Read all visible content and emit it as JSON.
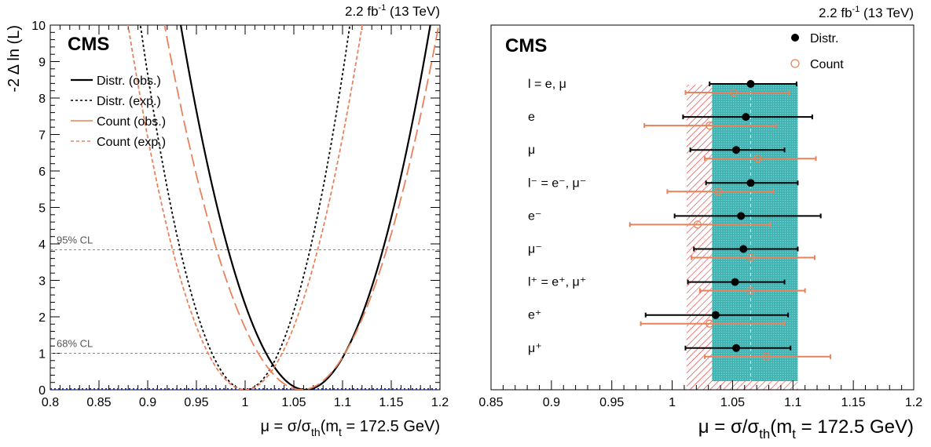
{
  "colors": {
    "obs": "#000000",
    "count": "#e8825a",
    "stat_band": "#41b3b3",
    "syst_band": "#e03030",
    "cl_line": "#888888"
  },
  "chart_data": [
    {
      "type": "line",
      "panel": "left",
      "lumi_label": "2.2 fb",
      "lumi_sup": "-1",
      "lumi_energy": " (13 TeV)",
      "cms_label": "CMS",
      "xlabel_parts": [
        "μ = σ/σ",
        "th",
        "(m",
        "t",
        " = 172.5 GeV)"
      ],
      "ylabel": "-2 Δ ln (L)",
      "xlim": [
        0.8,
        1.2
      ],
      "ylim": [
        0,
        10
      ],
      "xticks": [
        0.8,
        0.85,
        0.9,
        0.95,
        1.0,
        1.05,
        1.1,
        1.15,
        1.2
      ],
      "xtick_labels": [
        "0.8",
        "0.85",
        "0.9",
        "0.95",
        "1",
        "1.05",
        "1.1",
        "1.15",
        "1.2"
      ],
      "yticks": [
        0,
        1,
        2,
        3,
        4,
        5,
        6,
        7,
        8,
        9,
        10
      ],
      "ytick_labels": [
        "0",
        "1",
        "2",
        "3",
        "4",
        "5",
        "6",
        "7",
        "8",
        "9",
        "10"
      ],
      "cl_lines": [
        {
          "label": "95% CL",
          "y": 3.84
        },
        {
          "label": "68% CL",
          "y": 1.0
        }
      ],
      "legend_position": "top-left",
      "series": [
        {
          "name": "Distr. (obs.)",
          "style": "solid",
          "color": "#000000",
          "min_x": 1.062,
          "half_width": 0.0405
        },
        {
          "name": "Distr. (exp.)",
          "style": "dotted",
          "color": "#000000",
          "min_x": 1.0,
          "half_width": 0.034
        },
        {
          "name": "Count (obs.)",
          "style": "longdash",
          "color": "#e8825a",
          "min_x": 1.058,
          "half_width": 0.0445
        },
        {
          "name": "Count (exp.)",
          "style": "shortdash",
          "color": "#e8825a",
          "min_x": 1.0,
          "half_width": 0.038
        }
      ]
    },
    {
      "type": "scatter",
      "panel": "right",
      "lumi_label": "2.2 fb",
      "lumi_sup": "-1",
      "lumi_energy": " (13 TeV)",
      "cms_label": "CMS",
      "xlabel_parts": [
        "μ = σ/σ",
        "th",
        "(m",
        "t",
        " = 172.5 GeV)"
      ],
      "xlim": [
        0.85,
        1.2
      ],
      "xticks": [
        0.85,
        0.9,
        0.95,
        1.0,
        1.05,
        1.1,
        1.15,
        1.2
      ],
      "xtick_labels": [
        "0.85",
        "0.9",
        "0.95",
        "1",
        "1.05",
        "1.1",
        "1.15",
        "1.2"
      ],
      "legend_position": "top-right",
      "legend": [
        {
          "name": "Distr.",
          "marker": "filled-circle",
          "color": "#000000"
        },
        {
          "name": "Count",
          "marker": "open-circle",
          "color": "#e8825a"
        }
      ],
      "bands": {
        "syst": [
          1.012,
          1.104
        ],
        "stat": [
          1.033,
          1.104
        ],
        "center": 1.065
      },
      "channels": [
        {
          "label": "l = e, μ",
          "distr": {
            "x": 1.065,
            "lo": 1.031,
            "hi": 1.103
          },
          "count": {
            "x": 1.051,
            "lo": 1.011,
            "hi": 1.097
          }
        },
        {
          "label": "e",
          "distr": {
            "x": 1.061,
            "lo": 1.009,
            "hi": 1.116
          },
          "count": {
            "x": 1.031,
            "lo": 0.977,
            "hi": 1.086
          }
        },
        {
          "label": "μ",
          "distr": {
            "x": 1.053,
            "lo": 1.015,
            "hi": 1.093
          },
          "count": {
            "x": 1.071,
            "lo": 1.027,
            "hi": 1.119
          }
        },
        {
          "label": "l⁻ = e⁻, μ⁻",
          "distr": {
            "x": 1.065,
            "lo": 1.028,
            "hi": 1.104
          },
          "count": {
            "x": 1.038,
            "lo": 0.996,
            "hi": 1.084
          }
        },
        {
          "label": "e⁻",
          "distr": {
            "x": 1.057,
            "lo": 1.002,
            "hi": 1.123
          },
          "count": {
            "x": 1.021,
            "lo": 0.965,
            "hi": 1.081
          }
        },
        {
          "label": "μ⁻",
          "distr": {
            "x": 1.059,
            "lo": 1.018,
            "hi": 1.104
          },
          "count": {
            "x": 1.065,
            "lo": 1.016,
            "hi": 1.118
          }
        },
        {
          "label": "l⁺ = e⁺, μ⁺",
          "distr": {
            "x": 1.052,
            "lo": 1.013,
            "hi": 1.093
          },
          "count": {
            "x": 1.065,
            "lo": 1.023,
            "hi": 1.11
          }
        },
        {
          "label": "e⁺",
          "distr": {
            "x": 1.036,
            "lo": 0.978,
            "hi": 1.096
          },
          "count": {
            "x": 1.031,
            "lo": 0.974,
            "hi": 1.093
          }
        },
        {
          "label": "μ⁺",
          "distr": {
            "x": 1.053,
            "lo": 1.011,
            "hi": 1.098
          },
          "count": {
            "x": 1.078,
            "lo": 1.027,
            "hi": 1.131
          }
        }
      ]
    }
  ]
}
